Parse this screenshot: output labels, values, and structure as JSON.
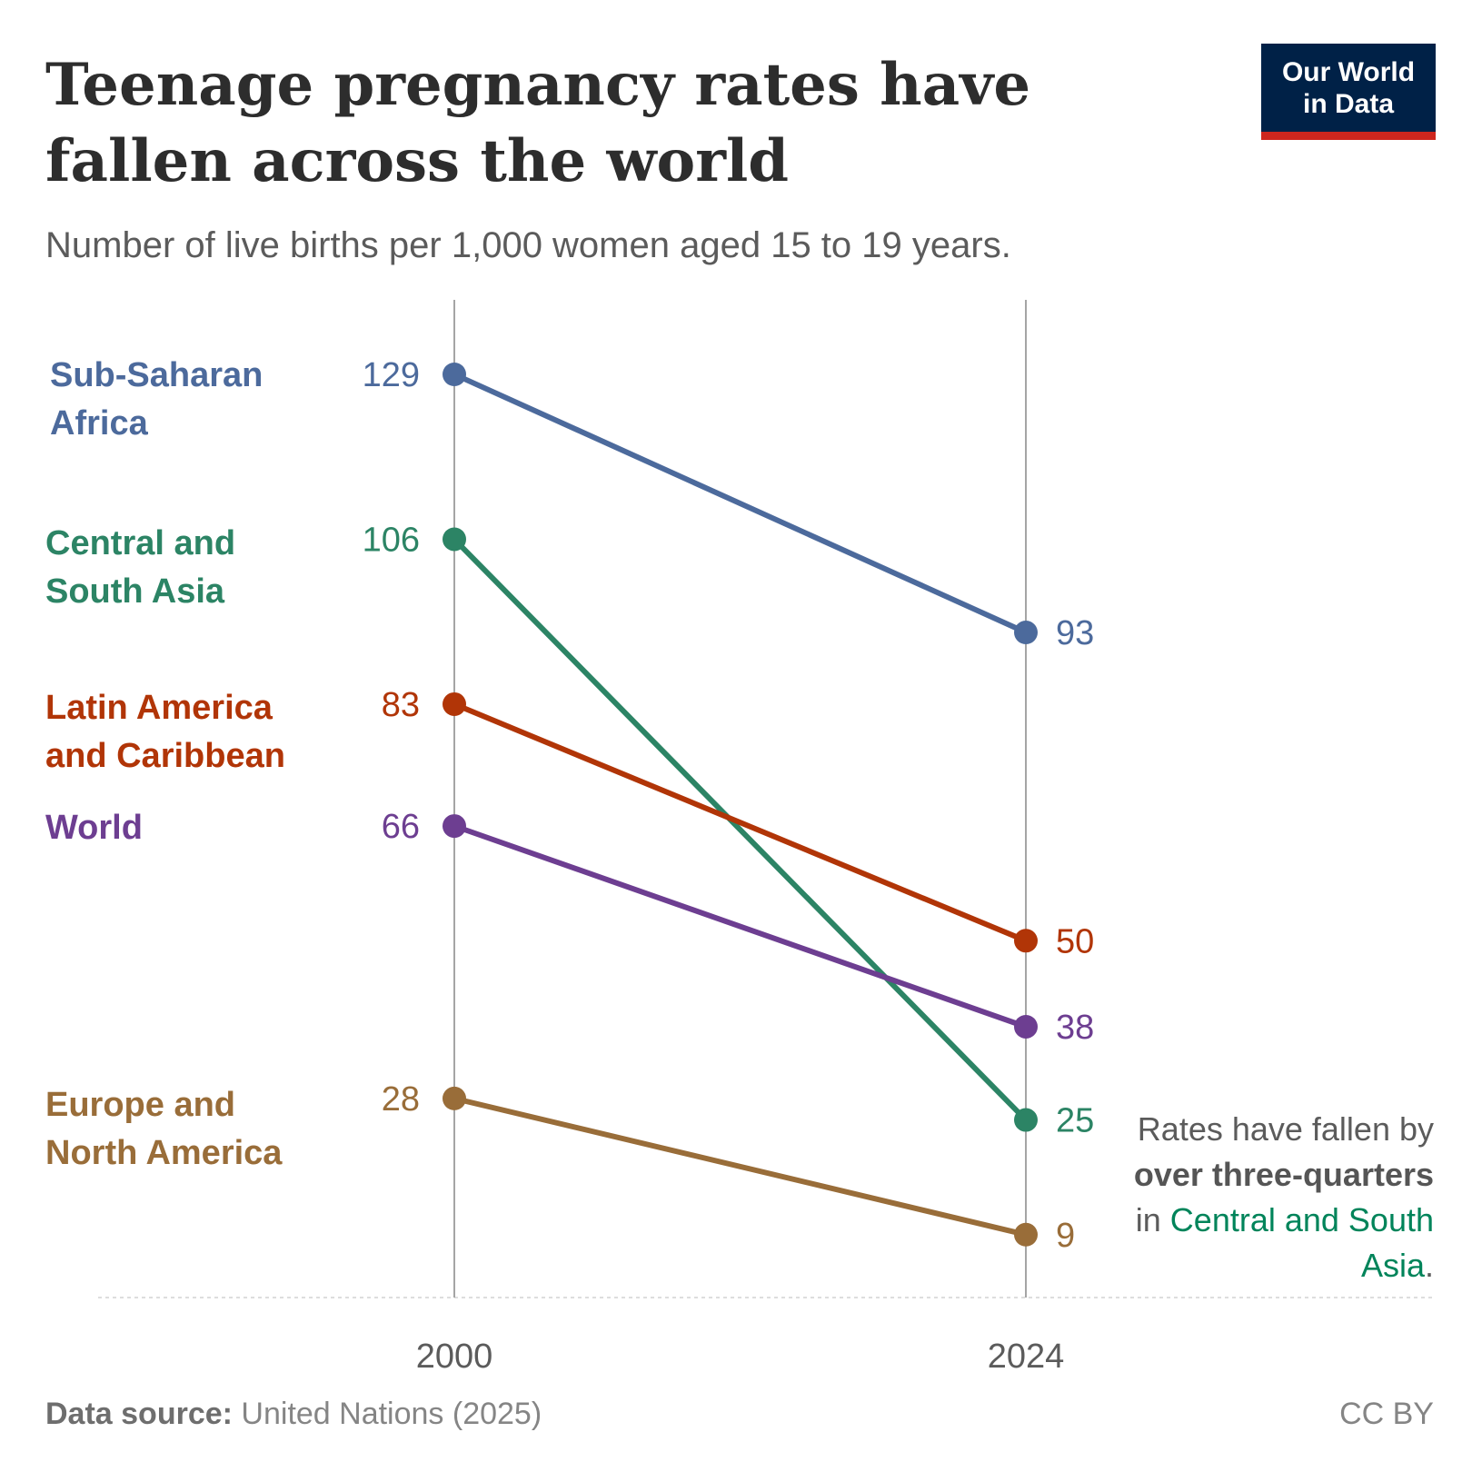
{
  "title": "Teenage pregnancy rates have fallen across the world",
  "subtitle": "Number of live births per 1,000 women aged 15 to 19 years.",
  "logo": {
    "line1": "Our World",
    "line2": "in Data"
  },
  "footer": {
    "source_label": "Data source:",
    "source": "United Nations (2025)",
    "license": "CC BY"
  },
  "annotation": {
    "part1": "Rates have fallen by ",
    "bold": "over three-quarters",
    "part2": " in ",
    "highlight": "Central and South Asia",
    "part3": "."
  },
  "chart_data": {
    "type": "line",
    "subtype": "slope",
    "x": [
      "2000",
      "2024"
    ],
    "grid": false,
    "series": [
      {
        "name": "Sub-Saharan Africa",
        "label_lines": [
          "Sub-Saharan",
          "Africa"
        ],
        "values": [
          129,
          93
        ],
        "color": "#4c6a9c"
      },
      {
        "name": "Central and South Asia",
        "label_lines": [
          "Central and",
          "South Asia"
        ],
        "values": [
          106,
          25
        ],
        "color": "#2c8465"
      },
      {
        "name": "Latin America and Caribbean",
        "label_lines": [
          "Latin America",
          "and Caribbean"
        ],
        "values": [
          83,
          50
        ],
        "color": "#b13507"
      },
      {
        "name": "World",
        "label_lines": [
          "World"
        ],
        "values": [
          66,
          38
        ],
        "color": "#6d3e91"
      },
      {
        "name": "Europe and North America",
        "label_lines": [
          "Europe and",
          "North America"
        ],
        "values": [
          28,
          9
        ],
        "color": "#996d39"
      }
    ]
  }
}
